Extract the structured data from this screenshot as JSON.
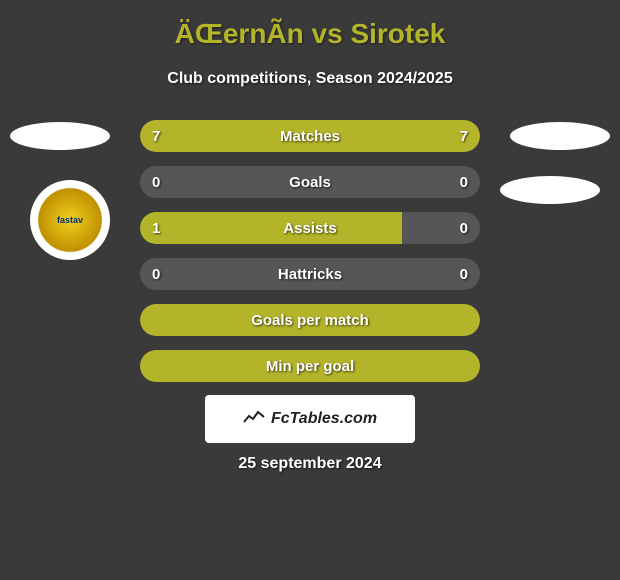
{
  "title": "ÄŒernÃ­n vs Sirotek",
  "subtitle": "Club competitions, Season 2024/2025",
  "footer_brand": "FcTables.com",
  "footer_date": "25 september 2024",
  "club_left_text": "fastav",
  "colors": {
    "background": "#3a3a3a",
    "accent": "#b4b42a",
    "bar_bg": "#565656",
    "text": "#ffffff"
  },
  "bars": [
    {
      "label": "Matches",
      "left_value": "7",
      "right_value": "7",
      "left_width": 50,
      "right_width": 50,
      "show_values": true
    },
    {
      "label": "Goals",
      "left_value": "0",
      "right_value": "0",
      "left_width": 0,
      "right_width": 0,
      "show_values": true
    },
    {
      "label": "Assists",
      "left_value": "1",
      "right_value": "0",
      "left_width": 77,
      "right_width": 0,
      "show_values": true
    },
    {
      "label": "Hattricks",
      "left_value": "0",
      "right_value": "0",
      "left_width": 0,
      "right_width": 0,
      "show_values": true
    },
    {
      "label": "Goals per match",
      "left_value": "",
      "right_value": "",
      "left_width": 100,
      "right_width": 0,
      "show_values": false
    },
    {
      "label": "Min per goal",
      "left_value": "",
      "right_value": "",
      "left_width": 100,
      "right_width": 0,
      "show_values": false
    }
  ]
}
